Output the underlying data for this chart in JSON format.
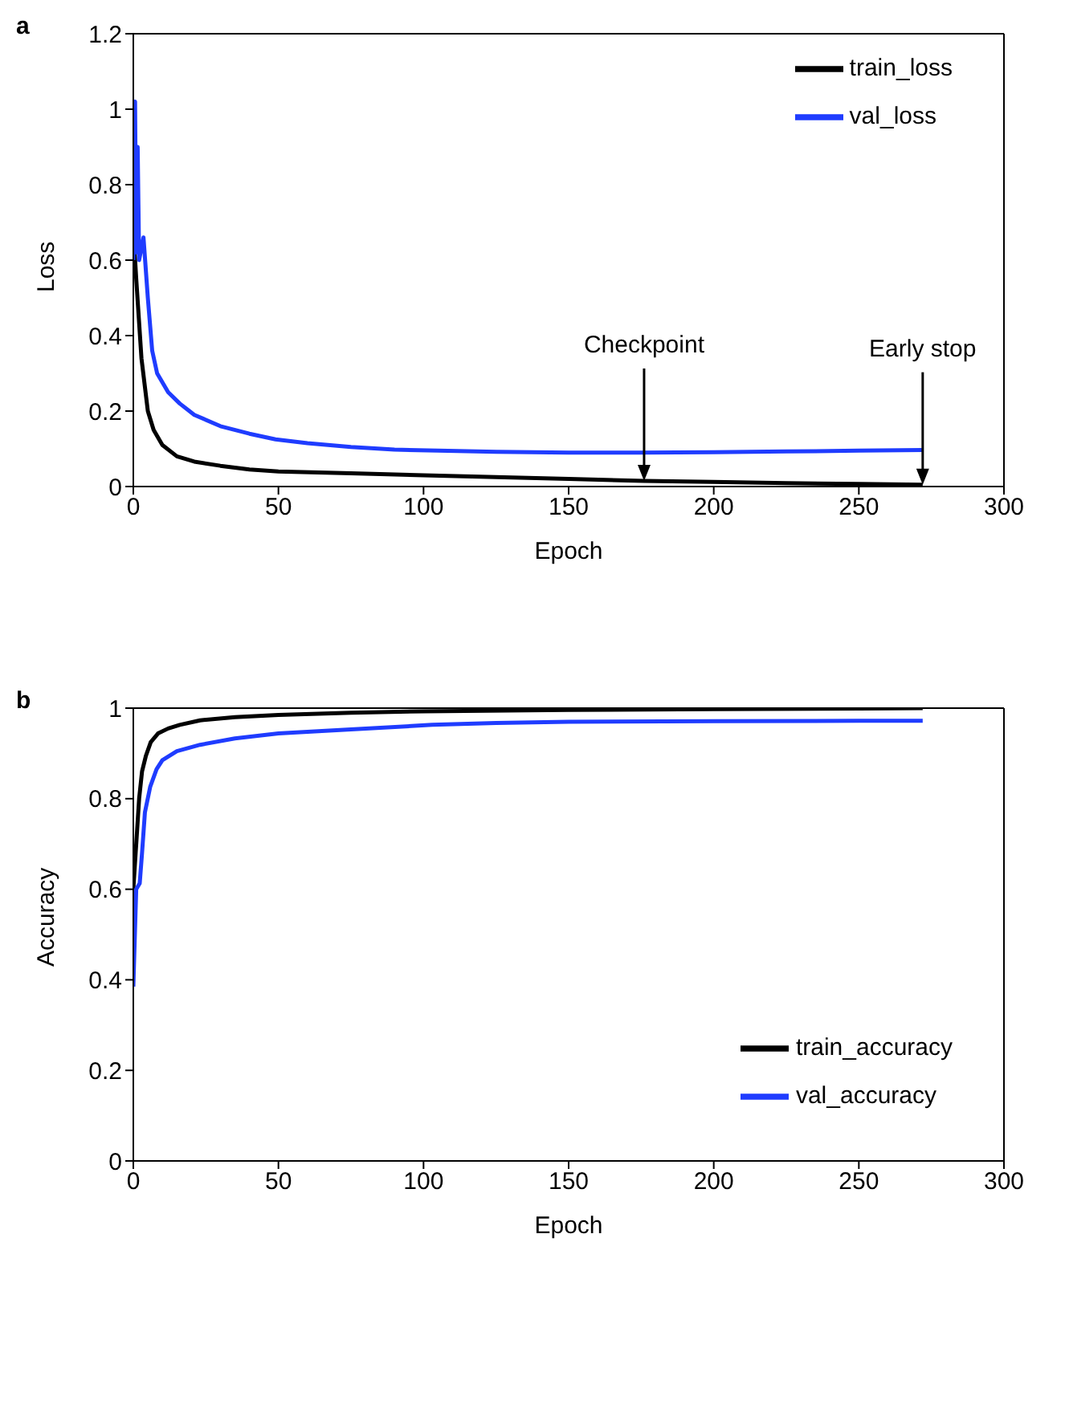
{
  "chart_data": [
    {
      "type": "line",
      "title": "a",
      "xlabel": "Epoch",
      "ylabel": "Loss",
      "xlim": [
        0,
        300
      ],
      "xticks": [
        0,
        50,
        100,
        150,
        200,
        250,
        300
      ],
      "ylim": [
        0,
        1.2
      ],
      "yticks": [
        0,
        0.2,
        0.4,
        0.6,
        0.8,
        1,
        1.2
      ],
      "legend": "top right",
      "marker": "none",
      "line_style": "solid",
      "series": [
        {
          "name": "train_loss",
          "color": "#000000",
          "x": [
            0,
            1,
            2.8,
            5,
            7,
            10,
            15,
            21,
            30,
            40,
            50,
            75,
            100,
            125,
            150,
            176,
            200,
            225,
            250,
            272
          ],
          "values": [
            0.68,
            0.55,
            0.34,
            0.2,
            0.15,
            0.11,
            0.08,
            0.066,
            0.055,
            0.045,
            0.04,
            0.035,
            0.03,
            0.025,
            0.02,
            0.015,
            0.012,
            0.009,
            0.007,
            0.005
          ]
        },
        {
          "name": "val_loss",
          "color": "#1f3cff",
          "x": [
            0,
            0.6,
            1,
            1.5,
            2,
            3.5,
            5,
            6.5,
            8.2,
            12,
            16,
            21,
            30,
            40,
            49,
            60,
            75,
            90,
            105,
            125,
            150,
            175,
            200,
            225,
            250,
            272
          ],
          "values": [
            0.6,
            1.02,
            0.62,
            0.9,
            0.6,
            0.66,
            0.5,
            0.36,
            0.3,
            0.25,
            0.22,
            0.19,
            0.16,
            0.14,
            0.125,
            0.115,
            0.105,
            0.098,
            0.095,
            0.092,
            0.09,
            0.09,
            0.091,
            0.093,
            0.095,
            0.097
          ]
        }
      ],
      "annotations": [
        {
          "text": "Checkpoint",
          "x": 176,
          "y": 0.015
        },
        {
          "text": "Early stop",
          "x": 272,
          "y": 0.005
        }
      ]
    },
    {
      "type": "line",
      "title": "b",
      "xlabel": "Epoch",
      "ylabel": "Accuracy",
      "xlim": [
        0,
        300
      ],
      "xticks": [
        0,
        50,
        100,
        150,
        200,
        250,
        300
      ],
      "ylim": [
        0,
        1
      ],
      "yticks": [
        0,
        0.2,
        0.4,
        0.6,
        0.8,
        1
      ],
      "legend": "bottom right",
      "marker": "none",
      "line_style": "solid",
      "series": [
        {
          "name": "train_accuracy",
          "color": "#000000",
          "x": [
            0,
            1,
            2,
            3,
            4.3,
            6,
            8.5,
            12,
            16,
            23,
            35,
            50,
            75,
            100,
            150,
            200,
            250,
            272
          ],
          "values": [
            0.6,
            0.7,
            0.8,
            0.86,
            0.894,
            0.925,
            0.944,
            0.955,
            0.963,
            0.973,
            0.98,
            0.985,
            0.99,
            0.993,
            0.996,
            0.998,
            0.999,
            1
          ]
        },
        {
          "name": "val_accuracy",
          "color": "#1f3cff",
          "x": [
            0,
            1,
            2.2,
            3,
            4,
            5.8,
            8,
            10,
            15,
            23,
            35,
            50,
            75,
            103,
            125,
            150,
            200,
            250,
            272
          ],
          "values": [
            0.385,
            0.6,
            0.613,
            0.68,
            0.77,
            0.826,
            0.865,
            0.885,
            0.905,
            0.919,
            0.933,
            0.944,
            0.953,
            0.963,
            0.967,
            0.97,
            0.971,
            0.972,
            0.972
          ]
        }
      ]
    }
  ]
}
